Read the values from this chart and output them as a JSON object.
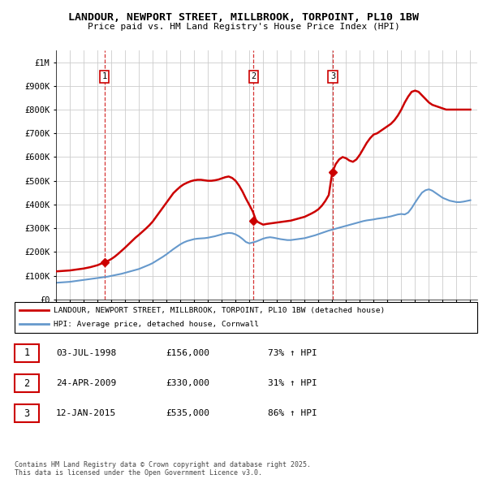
{
  "title": "LANDOUR, NEWPORT STREET, MILLBROOK, TORPOINT, PL10 1BW",
  "subtitle": "Price paid vs. HM Land Registry's House Price Index (HPI)",
  "yticks": [
    0,
    100000,
    200000,
    300000,
    400000,
    500000,
    600000,
    700000,
    800000,
    900000,
    1000000
  ],
  "ytick_labels": [
    "£0",
    "£100K",
    "£200K",
    "£300K",
    "£400K",
    "£500K",
    "£600K",
    "£700K",
    "£800K",
    "£900K",
    "£1M"
  ],
  "xlim_start": 1995.0,
  "xlim_end": 2025.5,
  "ylim_min": 0,
  "ylim_max": 1050000,
  "transactions": [
    {
      "date": 1998.5,
      "price": 156000,
      "label": "1"
    },
    {
      "date": 2009.3,
      "price": 330000,
      "label": "2"
    },
    {
      "date": 2015.04,
      "price": 535000,
      "label": "3"
    }
  ],
  "red_line_color": "#cc0000",
  "blue_line_color": "#6699cc",
  "grid_color": "#cccccc",
  "vline_color": "#cc0000",
  "legend_red_label": "LANDOUR, NEWPORT STREET, MILLBROOK, TORPOINT, PL10 1BW (detached house)",
  "legend_blue_label": "HPI: Average price, detached house, Cornwall",
  "table_rows": [
    [
      "1",
      "03-JUL-1998",
      "£156,000",
      "73% ↑ HPI"
    ],
    [
      "2",
      "24-APR-2009",
      "£330,000",
      "31% ↑ HPI"
    ],
    [
      "3",
      "12-JAN-2015",
      "£535,000",
      "86% ↑ HPI"
    ]
  ],
  "footnote": "Contains HM Land Registry data © Crown copyright and database right 2025.\nThis data is licensed under the Open Government Licence v3.0.",
  "hpi_years": [
    1995,
    1995.25,
    1995.5,
    1995.75,
    1996,
    1996.25,
    1996.5,
    1996.75,
    1997,
    1997.25,
    1997.5,
    1997.75,
    1998,
    1998.25,
    1998.5,
    1998.75,
    1999,
    1999.25,
    1999.5,
    1999.75,
    2000,
    2000.25,
    2000.5,
    2000.75,
    2001,
    2001.25,
    2001.5,
    2001.75,
    2002,
    2002.25,
    2002.5,
    2002.75,
    2003,
    2003.25,
    2003.5,
    2003.75,
    2004,
    2004.25,
    2004.5,
    2004.75,
    2005,
    2005.25,
    2005.5,
    2005.75,
    2006,
    2006.25,
    2006.5,
    2006.75,
    2007,
    2007.25,
    2007.5,
    2007.75,
    2008,
    2008.25,
    2008.5,
    2008.75,
    2009,
    2009.25,
    2009.5,
    2009.75,
    2010,
    2010.25,
    2010.5,
    2010.75,
    2011,
    2011.25,
    2011.5,
    2011.75,
    2012,
    2012.25,
    2012.5,
    2012.75,
    2013,
    2013.25,
    2013.5,
    2013.75,
    2014,
    2014.25,
    2014.5,
    2014.75,
    2015,
    2015.25,
    2015.5,
    2015.75,
    2016,
    2016.25,
    2016.5,
    2016.75,
    2017,
    2017.25,
    2017.5,
    2017.75,
    2018,
    2018.25,
    2018.5,
    2018.75,
    2019,
    2019.25,
    2019.5,
    2019.75,
    2020,
    2020.25,
    2020.5,
    2020.75,
    2021,
    2021.25,
    2021.5,
    2021.75,
    2022,
    2022.25,
    2022.5,
    2022.75,
    2023,
    2023.25,
    2023.5,
    2023.75,
    2024,
    2024.25,
    2024.5,
    2024.75,
    2025
  ],
  "hpi_values": [
    70000,
    71000,
    72000,
    73000,
    74000,
    76000,
    78000,
    80000,
    82000,
    84000,
    86000,
    88000,
    90000,
    92000,
    94000,
    96000,
    99000,
    102000,
    105000,
    108000,
    112000,
    116000,
    120000,
    124000,
    128000,
    134000,
    140000,
    146000,
    153000,
    162000,
    171000,
    180000,
    190000,
    201000,
    212000,
    222000,
    232000,
    240000,
    246000,
    250000,
    254000,
    256000,
    257000,
    258000,
    260000,
    263000,
    266000,
    270000,
    274000,
    278000,
    280000,
    279000,
    274000,
    266000,
    255000,
    242000,
    236000,
    240000,
    244000,
    250000,
    256000,
    260000,
    262000,
    260000,
    257000,
    254000,
    252000,
    250000,
    250000,
    252000,
    254000,
    256000,
    258000,
    262000,
    266000,
    270000,
    275000,
    280000,
    285000,
    290000,
    294000,
    298000,
    302000,
    306000,
    310000,
    314000,
    318000,
    322000,
    326000,
    330000,
    333000,
    335000,
    337000,
    340000,
    342000,
    344000,
    347000,
    350000,
    354000,
    358000,
    360000,
    358000,
    366000,
    385000,
    408000,
    430000,
    450000,
    460000,
    464000,
    458000,
    448000,
    438000,
    428000,
    422000,
    416000,
    413000,
    410000,
    410000,
    412000,
    415000,
    418000
  ],
  "red_line_years": [
    1995,
    1995.25,
    1995.5,
    1995.75,
    1996,
    1996.25,
    1996.5,
    1996.75,
    1997,
    1997.25,
    1997.5,
    1997.75,
    1998,
    1998.25,
    1998.5,
    1998.75,
    1999,
    1999.25,
    1999.5,
    1999.75,
    2000,
    2000.25,
    2000.5,
    2000.75,
    2001,
    2001.25,
    2001.5,
    2001.75,
    2002,
    2002.25,
    2002.5,
    2002.75,
    2003,
    2003.25,
    2003.5,
    2003.75,
    2004,
    2004.25,
    2004.5,
    2004.75,
    2005,
    2005.25,
    2005.5,
    2005.75,
    2006,
    2006.25,
    2006.5,
    2006.75,
    2007,
    2007.25,
    2007.5,
    2007.75,
    2008,
    2008.25,
    2008.5,
    2008.75,
    2009,
    2009.25,
    2009.5,
    2009.75,
    2010,
    2010.25,
    2010.5,
    2010.75,
    2011,
    2011.25,
    2011.5,
    2011.75,
    2012,
    2012.25,
    2012.5,
    2012.75,
    2013,
    2013.25,
    2013.5,
    2013.75,
    2014,
    2014.25,
    2014.5,
    2014.75,
    2015,
    2015.25,
    2015.5,
    2015.75,
    2016,
    2016.25,
    2016.5,
    2016.75,
    2017,
    2017.25,
    2017.5,
    2017.75,
    2018,
    2018.25,
    2018.5,
    2018.75,
    2019,
    2019.25,
    2019.5,
    2019.75,
    2020,
    2020.25,
    2020.5,
    2020.75,
    2021,
    2021.25,
    2021.5,
    2021.75,
    2022,
    2022.25,
    2022.5,
    2022.75,
    2023,
    2023.25,
    2023.5,
    2023.75,
    2024,
    2024.25,
    2024.5,
    2024.75,
    2025
  ],
  "red_line_values": [
    118000,
    119000,
    120000,
    121000,
    122000,
    124000,
    126000,
    128000,
    130000,
    133000,
    136000,
    140000,
    144000,
    150000,
    156000,
    162000,
    170000,
    180000,
    192000,
    205000,
    218000,
    232000,
    246000,
    260000,
    272000,
    285000,
    298000,
    312000,
    328000,
    348000,
    368000,
    388000,
    408000,
    428000,
    448000,
    462000,
    475000,
    485000,
    492000,
    498000,
    502000,
    504000,
    504000,
    502000,
    500000,
    500000,
    502000,
    505000,
    510000,
    515000,
    518000,
    512000,
    500000,
    480000,
    455000,
    425000,
    398000,
    370000,
    330000,
    322000,
    315000,
    318000,
    320000,
    322000,
    324000,
    326000,
    328000,
    330000,
    332000,
    336000,
    340000,
    344000,
    348000,
    355000,
    362000,
    370000,
    380000,
    395000,
    415000,
    440000,
    535000,
    570000,
    590000,
    600000,
    595000,
    585000,
    580000,
    590000,
    610000,
    635000,
    660000,
    680000,
    695000,
    700000,
    710000,
    720000,
    730000,
    740000,
    755000,
    775000,
    800000,
    830000,
    855000,
    875000,
    880000,
    875000,
    860000,
    845000,
    830000,
    820000,
    815000,
    810000,
    805000,
    800000,
    800000,
    800000,
    800000,
    800000,
    800000,
    800000,
    800000
  ]
}
